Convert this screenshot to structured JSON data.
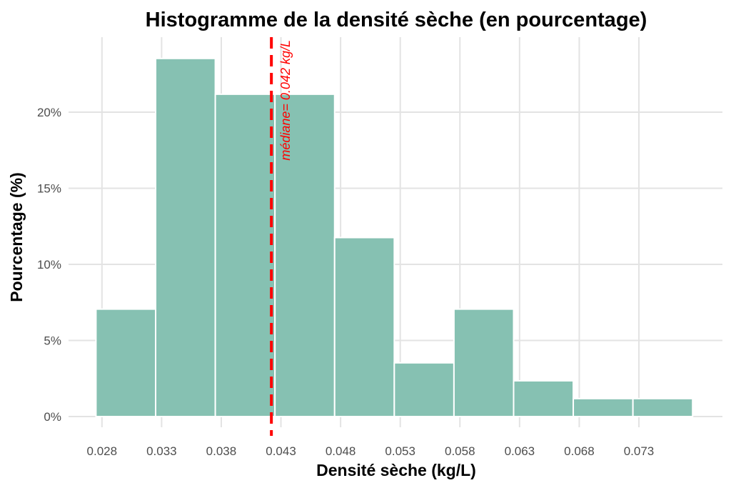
{
  "chart_data": {
    "type": "bar",
    "title": "Histogramme de la densité sèche (en pourcentage)",
    "xlabel": "Densité sèche (kg/L)",
    "ylabel": "Pourcentage (%)",
    "bin_width": 0.005,
    "bins": [
      {
        "start": 0.0275,
        "end": 0.0325,
        "value": 7.06
      },
      {
        "start": 0.0325,
        "end": 0.0375,
        "value": 23.53
      },
      {
        "start": 0.0375,
        "end": 0.0425,
        "value": 21.18
      },
      {
        "start": 0.0425,
        "end": 0.0475,
        "value": 21.18
      },
      {
        "start": 0.0475,
        "end": 0.0525,
        "value": 11.76
      },
      {
        "start": 0.0525,
        "end": 0.0575,
        "value": 3.53
      },
      {
        "start": 0.0575,
        "end": 0.0625,
        "value": 7.06
      },
      {
        "start": 0.0625,
        "end": 0.0675,
        "value": 2.35
      },
      {
        "start": 0.0675,
        "end": 0.0725,
        "value": 1.18
      },
      {
        "start": 0.0725,
        "end": 0.0775,
        "value": 1.18
      }
    ],
    "x_ticks": [
      0.028,
      0.033,
      0.038,
      0.043,
      0.048,
      0.053,
      0.058,
      0.063,
      0.068,
      0.073
    ],
    "x_tick_labels": [
      "0.028",
      "0.033",
      "0.038",
      "0.043",
      "0.048",
      "0.053",
      "0.058",
      "0.063",
      "0.068",
      "0.073"
    ],
    "y_ticks": [
      0,
      5,
      10,
      15,
      20
    ],
    "y_tick_labels": [
      "0%",
      "5%",
      "10%",
      "15%",
      "20%"
    ],
    "xlim": [
      0.0252,
      0.08
    ],
    "ylim": [
      0,
      25
    ],
    "grid": true,
    "legend": "none",
    "median": {
      "value": 0.0422,
      "label": "médiane= 0.042 kg/L",
      "color": "#ff0000",
      "style": "dashed"
    },
    "colors": {
      "bar_fill": "#86c1b2",
      "bar_outline": "#ffffff",
      "grid": "#e3e3e3",
      "median": "#ff0000"
    }
  }
}
